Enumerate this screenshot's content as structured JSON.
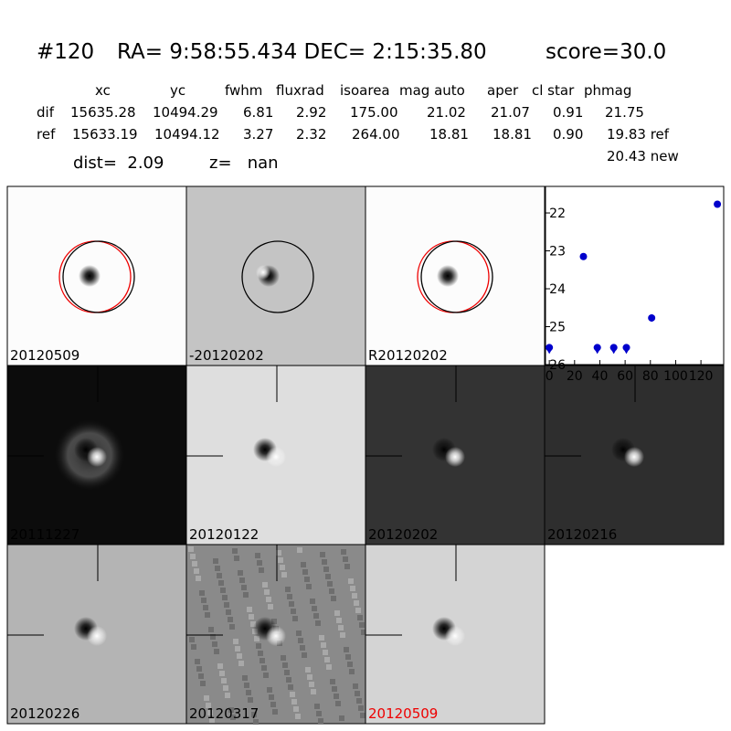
{
  "header": {
    "id": "#120",
    "coords": "RA= 9:58:55.434 DEC= 2:15:35.80",
    "score": "score=30.0"
  },
  "table": {
    "columns": [
      "xc",
      "yc",
      "fwhm",
      "fluxrad",
      "isoarea",
      "mag auto",
      "aper",
      "cl star",
      "phmag"
    ],
    "rows": [
      [
        "dif",
        "15635.28",
        "10494.29",
        "6.81",
        "2.92",
        "175.00",
        "21.02",
        "21.07",
        "0.91",
        "21.75"
      ],
      [
        "ref",
        "15633.19",
        "10494.12",
        "3.27",
        "2.32",
        "264.00",
        "18.81",
        "18.81",
        "0.90",
        "19.83 ref"
      ]
    ],
    "extra": "20.43 new"
  },
  "info": {
    "dist": "dist=  2.09",
    "z": "z=   nan"
  },
  "stamps": [
    "20120509",
    "-20120202",
    "R20120202",
    "20111227",
    "20120122",
    "20120202",
    "20120216",
    "20120226",
    "20120317",
    "20120509"
  ],
  "chart_data": {
    "type": "scatter",
    "color": "#0000cc",
    "x": [
      0,
      27,
      38,
      51,
      61,
      81,
      133
    ],
    "values": [
      25.55,
      23.15,
      25.55,
      25.55,
      25.55,
      24.77,
      21.77
    ],
    "upper_limit": [
      true,
      false,
      true,
      true,
      true,
      false,
      false
    ],
    "errors": [
      null,
      null,
      null,
      null,
      null,
      0.1,
      null
    ],
    "xlim": [
      -3,
      138
    ],
    "ylim": [
      26,
      21.3
    ],
    "xticks": [
      0,
      20,
      40,
      60,
      80,
      100,
      120
    ],
    "yticks": [
      22,
      23,
      24,
      25,
      26
    ]
  }
}
